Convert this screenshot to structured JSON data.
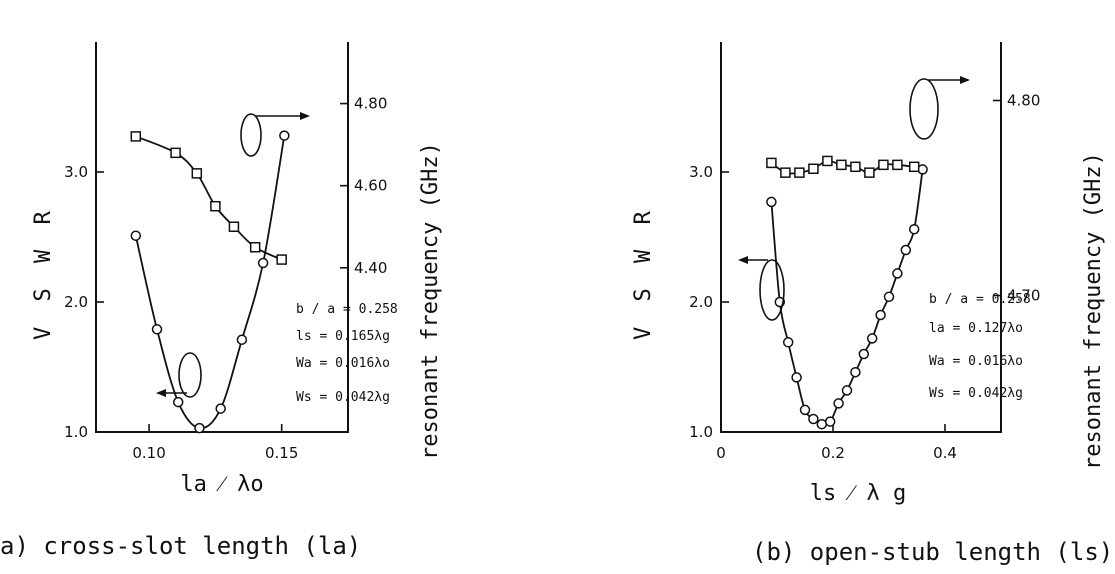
{
  "chart_data": [
    {
      "type": "line",
      "caption": "a) cross-slot length (la)",
      "xlabel": "la ⁄ λo",
      "ylabel_left": "V S W R",
      "ylabel_right": "resonant frequency (GHz)",
      "xlim": [
        0.08,
        0.175
      ],
      "ylim_left": [
        1.0,
        4.0
      ],
      "ylim_right": [
        4.0,
        4.95
      ],
      "x_ticks": [
        0.1,
        0.15
      ],
      "x_tick_labels": [
        "0.10",
        "0.15"
      ],
      "y_left_ticks": [
        1.0,
        2.0,
        3.0
      ],
      "y_left_tick_labels": [
        "1.0",
        "2.0",
        "3.0"
      ],
      "y_right_ticks": [
        4.4,
        4.6,
        4.8
      ],
      "y_right_tick_labels": [
        "4.40",
        "4.60",
        "4.80"
      ],
      "series": [
        {
          "axis": "left",
          "marker": "circle",
          "x": [
            0.095,
            0.103,
            0.111,
            0.119,
            0.127,
            0.135,
            0.143,
            0.151
          ],
          "y": [
            2.51,
            1.79,
            1.23,
            1.03,
            1.18,
            1.71,
            2.3,
            3.28
          ]
        },
        {
          "axis": "right",
          "marker": "square",
          "x": [
            0.095,
            0.11,
            0.118,
            0.125,
            0.132,
            0.14,
            0.15
          ],
          "y": [
            4.72,
            4.68,
            4.63,
            4.55,
            4.5,
            4.45,
            4.42
          ]
        }
      ],
      "params": [
        "b / a = 0.258",
        "ls = 0.165λg",
        "Wa = 0.016λo",
        "Ws = 0.042λg"
      ]
    },
    {
      "type": "line",
      "caption": "(b) open-stub length (ls)",
      "xlabel": "ls ⁄ λ g",
      "ylabel_left": "V S W R",
      "ylabel_right": "resonant frequency (GHz)",
      "xlim": [
        0.0,
        0.5
      ],
      "ylim_left": [
        1.0,
        4.0
      ],
      "ylim_right": [
        4.63,
        4.83
      ],
      "x_ticks": [
        0.0,
        0.2,
        0.4
      ],
      "x_tick_labels": [
        "0",
        "0.2",
        "0.4"
      ],
      "y_left_ticks": [
        1.0,
        2.0,
        3.0
      ],
      "y_left_tick_labels": [
        "1.0",
        "2.0",
        "3.0"
      ],
      "y_right_ticks": [
        4.7,
        4.8
      ],
      "y_right_tick_labels": [
        "4.70",
        "4.80"
      ],
      "series": [
        {
          "axis": "left",
          "marker": "circle",
          "x": [
            0.09,
            0.105,
            0.12,
            0.135,
            0.15,
            0.165,
            0.18,
            0.195,
            0.21,
            0.225,
            0.24,
            0.255,
            0.27,
            0.285,
            0.3,
            0.315,
            0.33,
            0.345,
            0.36
          ],
          "y": [
            2.77,
            2.0,
            1.69,
            1.42,
            1.17,
            1.1,
            1.06,
            1.08,
            1.22,
            1.32,
            1.46,
            1.6,
            1.72,
            1.9,
            2.04,
            2.22,
            2.4,
            2.56,
            3.02
          ]
        },
        {
          "axis": "right",
          "marker": "square",
          "x": [
            0.09,
            0.115,
            0.14,
            0.165,
            0.19,
            0.215,
            0.24,
            0.265,
            0.29,
            0.315,
            0.345
          ],
          "y": [
            4.768,
            4.763,
            4.763,
            4.765,
            4.769,
            4.767,
            4.766,
            4.763,
            4.767,
            4.767,
            4.766
          ]
        }
      ],
      "params": [
        "b / a = 0.258",
        "la = 0.127λo",
        "Wa = 0.016λo",
        "Ws = 0.042λg"
      ]
    }
  ]
}
